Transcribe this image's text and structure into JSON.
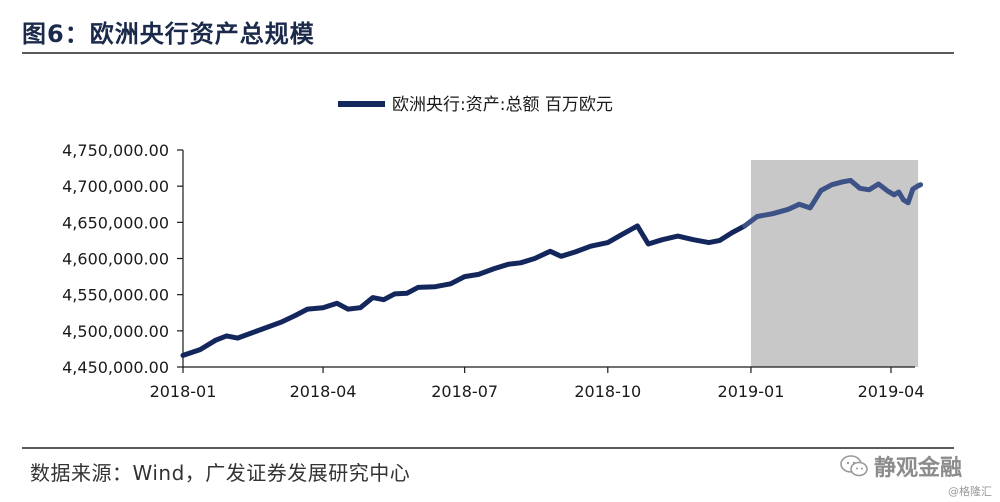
{
  "header": {
    "title": "图6：欧洲央行资产总规模"
  },
  "footer": {
    "source": "数据来源：Wind，广发证券发展研究中心",
    "watermark": "静观金融",
    "corner_credit": "@格隆汇"
  },
  "colors": {
    "series": "#13275c",
    "series_shaded": "#3d5286",
    "shade": "#c8c8c8",
    "axis": "#1a1a1a"
  },
  "chart_data": {
    "type": "line",
    "legend": [
      "欧洲央行:资产:总额 百万欧元"
    ],
    "legend_position": "top-center",
    "grid": false,
    "ylim": [
      4450000,
      4750000
    ],
    "yticks": [
      "4,450,000.00",
      "4,500,000.00",
      "4,550,000.00",
      "4,600,000.00",
      "4,650,000.00",
      "4,700,000.00",
      "4,750,000.00"
    ],
    "ytick_values": [
      4450000,
      4500000,
      4550000,
      4600000,
      4650000,
      4700000,
      4750000
    ],
    "xticks": [
      "2018-01",
      "2018-04",
      "2018-07",
      "2018-10",
      "2019-01",
      "2019-04"
    ],
    "xlim": [
      "2018-01-01",
      "2019-04-10"
    ],
    "shaded_region": [
      "2019-01-01",
      "2019-04-12"
    ],
    "series": [
      {
        "name": "欧洲央行:资产:总额 百万欧元",
        "points": [
          [
            "2018-01-01",
            4466000
          ],
          [
            "2018-01-12",
            4474000
          ],
          [
            "2018-01-22",
            4487000
          ],
          [
            "2018-01-29",
            4493000
          ],
          [
            "2018-02-05",
            4490000
          ],
          [
            "2018-02-14",
            4497000
          ],
          [
            "2018-02-23",
            4504000
          ],
          [
            "2018-03-05",
            4512000
          ],
          [
            "2018-03-14",
            4521000
          ],
          [
            "2018-03-22",
            4530000
          ],
          [
            "2018-04-01",
            4532000
          ],
          [
            "2018-04-10",
            4538000
          ],
          [
            "2018-04-17",
            4530000
          ],
          [
            "2018-04-25",
            4532000
          ],
          [
            "2018-05-03",
            4546000
          ],
          [
            "2018-05-10",
            4543000
          ],
          [
            "2018-05-17",
            4551000
          ],
          [
            "2018-05-25",
            4552000
          ],
          [
            "2018-06-01",
            4560000
          ],
          [
            "2018-06-12",
            4561000
          ],
          [
            "2018-06-22",
            4565000
          ],
          [
            "2018-07-01",
            4575000
          ],
          [
            "2018-07-10",
            4578000
          ],
          [
            "2018-07-20",
            4586000
          ],
          [
            "2018-07-29",
            4592000
          ],
          [
            "2018-08-06",
            4594000
          ],
          [
            "2018-08-15",
            4600000
          ],
          [
            "2018-08-25",
            4610000
          ],
          [
            "2018-09-01",
            4603000
          ],
          [
            "2018-09-10",
            4609000
          ],
          [
            "2018-09-20",
            4617000
          ],
          [
            "2018-10-01",
            4622000
          ],
          [
            "2018-10-10",
            4633000
          ],
          [
            "2018-10-20",
            4645000
          ],
          [
            "2018-10-27",
            4620000
          ],
          [
            "2018-11-05",
            4626000
          ],
          [
            "2018-11-15",
            4631000
          ],
          [
            "2018-11-25",
            4626000
          ],
          [
            "2018-12-05",
            4622000
          ],
          [
            "2018-12-12",
            4625000
          ],
          [
            "2018-12-20",
            4636000
          ],
          [
            "2018-12-28",
            4645000
          ],
          [
            "2019-01-05",
            4658000
          ],
          [
            "2019-01-15",
            4662000
          ],
          [
            "2019-01-25",
            4668000
          ],
          [
            "2019-02-01",
            4675000
          ],
          [
            "2019-02-08",
            4670000
          ],
          [
            "2019-02-15",
            4694000
          ],
          [
            "2019-02-22",
            4702000
          ],
          [
            "2019-03-01",
            4706000
          ],
          [
            "2019-03-06",
            4708000
          ],
          [
            "2019-03-12",
            4697000
          ],
          [
            "2019-03-18",
            4695000
          ],
          [
            "2019-03-24",
            4703000
          ],
          [
            "2019-03-30",
            4693000
          ],
          [
            "2019-04-03",
            4688000
          ],
          [
            "2019-04-06",
            4692000
          ],
          [
            "2019-04-09",
            4681000
          ],
          [
            "2019-04-12",
            4677000
          ],
          [
            "2019-04-15",
            4696000
          ],
          [
            "2019-04-18",
            4700000
          ],
          [
            "2019-04-20",
            4702000
          ]
        ]
      }
    ]
  }
}
